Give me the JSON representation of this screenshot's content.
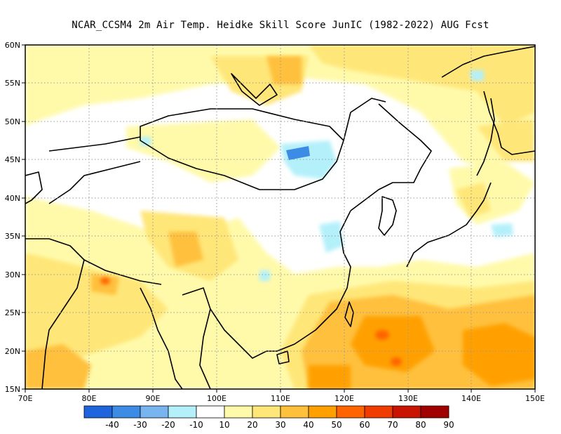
{
  "title": "NCAR_CCSM4  2m Air Temp. Heidke Skill Score JunIC (1982-2022) AUG Fcst",
  "map": {
    "lon_ticks": [
      "70E",
      "80E",
      "90E",
      "100E",
      "110E",
      "120E",
      "130E",
      "140E",
      "150E"
    ],
    "lat_ticks": [
      "60N",
      "55N",
      "50N",
      "45N",
      "40N",
      "35N",
      "30N",
      "25N",
      "20N",
      "15N"
    ],
    "extent": {
      "lon": [
        70,
        150
      ],
      "lat": [
        15,
        60
      ]
    },
    "grid": "dotted"
  },
  "colorbar": {
    "labels": [
      "-40",
      "-30",
      "-20",
      "-10",
      "10",
      "20",
      "30",
      "40",
      "50",
      "60",
      "70",
      "80",
      "90"
    ],
    "colors": [
      "#1e64dc",
      "#3c8ce6",
      "#78b4f0",
      "#b4f0fa",
      "#ffffff",
      "#fffaaa",
      "#ffe678",
      "#ffc03c",
      "#ffa000",
      "#ff6400",
      "#f03c00",
      "#c81400",
      "#a00000"
    ]
  }
}
